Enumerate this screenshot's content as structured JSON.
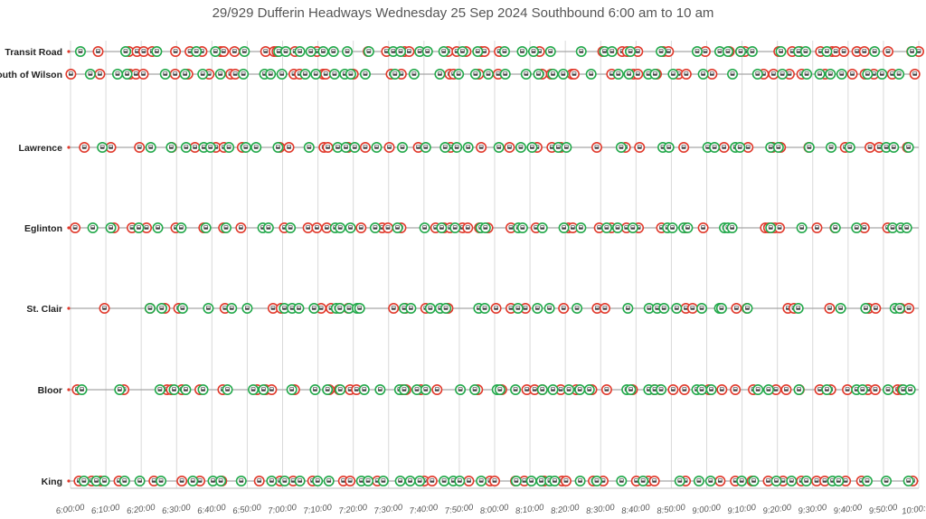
{
  "chart_data": {
    "type": "scatter",
    "title": "29/929 Dufferin Headways Wednesday 25 Sep 2024 Southbound 6:00 am to 10 am",
    "xlabel": "",
    "ylabel": "",
    "x_range": [
      "6:00:00",
      "10:00:00"
    ],
    "x_ticks": [
      "6:00:00",
      "6:10:00",
      "6:20:00",
      "6:30:00",
      "6:40:00",
      "6:50:00",
      "7:00:00",
      "7:10:00",
      "7:20:00",
      "7:30:00",
      "7:40:00",
      "7:50:00",
      "8:00:00",
      "8:10:00",
      "8:20:00",
      "8:30:00",
      "8:40:00",
      "8:50:00",
      "9:00:00",
      "9:10:00",
      "9:20:00",
      "9:30:00",
      "9:40:00",
      "9:50:00",
      "10:00:00"
    ],
    "grid": "vertical",
    "legend": "none",
    "series_colors": {
      "route_29": "#e0392b",
      "route_929": "#22a84a"
    },
    "stops": [
      {
        "name": "Transit Road",
        "red": [
          7.8,
          16.5,
          18.8,
          20.7,
          23.1,
          29.7,
          33.8,
          37.2,
          42.5,
          43.3,
          46.4,
          55.2,
          57.6,
          58.4,
          63.5,
          69.7,
          84.2,
          89.4,
          94.5,
          95.8,
          106.8,
          109.3,
          111.9,
          116.2,
          117.1,
          121.3,
          132.7,
          150.6,
          156.1,
          157.5,
          160.5,
          167.7,
          169.2,
          179.6,
          186.4,
          189.6,
          190.8,
          200.4,
          204.2,
          206.4,
          212.2,
          215.5,
          216.5,
          218.8,
          222.5,
          224.6,
          231.3,
          238.0,
          240.0
        ],
        "green": [
          2.8,
          15.6,
          24.4,
          35.6,
          41.0,
          49.2,
          58.9,
          60.9,
          64.9,
          68.0,
          71.5,
          74.4,
          78.3,
          84.4,
          91.3,
          93.4,
          98.8,
          101.0,
          105.6,
          110.9,
          115.2,
          122.8,
          127.8,
          131.0,
          135.8,
          144.5,
          151.1,
          153.2,
          158.4,
          167.1,
          177.3,
          183.7,
          186.0,
          189.6,
          192.9,
          201.0,
          206.0,
          208.0,
          214.0,
          227.5,
          238.1
        ]
      },
      {
        "name": "South of Wilson",
        "red": [
          0.1,
          8.3,
          16.8,
          18.5,
          20.6,
          29.6,
          33.2,
          39.2,
          45.3,
          46.6,
          63.2,
          64.8,
          71.5,
          72.2,
          80.0,
          90.7,
          93.6,
          107.3,
          108.4,
          115.5,
          121.0,
          133.4,
          136.0,
          141.9,
          142.5,
          153.1,
          159.3,
          160.5,
          165.8,
          172.0,
          174.2,
          181.5,
          196.1,
          198.9,
          203.4,
          206.9,
          213.5,
          221.2,
          224.8,
          227.3,
          232.5,
          238.9
        ],
        "green": [
          5.6,
          13.3,
          16.0,
          26.8,
          32.4,
          37.4,
          42.4,
          48.9,
          54.9,
          56.6,
          59.8,
          66.4,
          69.4,
          74.7,
          77.6,
          79.3,
          83.4,
          91.8,
          97.2,
          104.5,
          109.8,
          114.6,
          118.2,
          123.0,
          128.9,
          132.4,
          136.5,
          139.4,
          147.3,
          155.0,
          158.0,
          163.5,
          165.4,
          170.5,
          179.0,
          187.3,
          194.4,
          201.4,
          208.3,
          212.0,
          215.0,
          218.2,
          225.5,
          229.6,
          234.4
        ]
      },
      {
        "name": "Lawrence",
        "red": [
          3.9,
          11.4,
          19.5,
          28.6,
          35.2,
          41.1,
          43.4,
          48.6,
          59.2,
          61.8,
          71.7,
          72.8,
          78.5,
          83.4,
          90.2,
          98.4,
          107.5,
          116.2,
          124.2,
          132.0,
          136.2,
          138.7,
          148.9,
          157.0,
          161.0,
          173.5,
          184.9,
          191.7,
          198.6,
          200.9,
          208.9,
          219.2,
          226.2,
          228.8,
          236.8
        ],
        "green": [
          9.0,
          22.7,
          28.5,
          32.7,
          37.7,
          39.6,
          44.8,
          49.6,
          52.5,
          58.7,
          67.5,
          75.6,
          77.9,
          80.4,
          86.6,
          93.9,
          100.5,
          106.0,
          109.3,
          112.5,
          121.2,
          127.4,
          130.6,
          138.0,
          140.3,
          155.8,
          167.6,
          169.3,
          180.3,
          182.2,
          188.1,
          189.4,
          198.1,
          200.3,
          209.0,
          215.2,
          220.5,
          230.8,
          232.9,
          237.1
        ]
      },
      {
        "name": "Eglinton",
        "red": [
          1.3,
          12.3,
          17.4,
          21.5,
          29.8,
          37.7,
          43.3,
          48.2,
          60.5,
          67.2,
          69.7,
          72.5,
          82.2,
          88.2,
          89.8,
          93.5,
          103.3,
          105.7,
          107.4,
          110.9,
          112.4,
          115.7,
          118.1,
          124.6,
          131.7,
          140.9,
          142.1,
          149.6,
          153.0,
          157.3,
          160.7,
          167.2,
          174.1,
          179.0,
          196.6,
          197.5,
          198.4,
          199.3,
          200.6,
          211.2,
          216.3,
          224.6,
          231.2
        ],
        "green": [
          6.3,
          11.4,
          19.3,
          24.7,
          31.3,
          38.3,
          44.0,
          54.4,
          56.0,
          62.2,
          74.9,
          76.3,
          79.2,
          86.2,
          92.5,
          100.2,
          105.0,
          108.8,
          116.1,
          117.4,
          126.7,
          127.9,
          133.5,
          139.6,
          144.4,
          151.7,
          154.8,
          159.1,
          168.9,
          170.3,
          173.5,
          174.6,
          185.0,
          186.0,
          187.2,
          198.1,
          206.9,
          216.4,
          222.4,
          232.6,
          234.9,
          236.6
        ]
      },
      {
        "name": "St. Clair",
        "red": [
          9.6,
          22.5,
          26.7,
          30.6,
          43.7,
          57.3,
          59.6,
          70.9,
          73.7,
          76.2,
          78.6,
          91.4,
          94.7,
          100.5,
          106.8,
          120.4,
          124.6,
          128.7,
          139.5,
          149.0,
          151.2,
          174.1,
          176.0,
          188.4,
          191.4,
          203.0,
          204.7,
          214.8,
          225.8,
          227.8,
          234.9,
          237.2
        ],
        "green": [
          22.5,
          25.8,
          31.7,
          39.0,
          45.6,
          50.0,
          60.5,
          62.7,
          64.6,
          68.9,
          75.2,
          76.2,
          78.8,
          81.1,
          81.8,
          94.4,
          96.3,
          101.8,
          104.6,
          106.2,
          115.5,
          117.2,
          126.6,
          132.1,
          135.5,
          143.3,
          157.7,
          163.7,
          166.0,
          167.9,
          171.5,
          178.6,
          183.6,
          184.2,
          191.5,
          205.9,
          217.9,
          225.0,
          233.3,
          234.6
        ]
      },
      {
        "name": "Bloor",
        "red": [
          1.9,
          15.1,
          27.3,
          28.5,
          31.5,
          36.6,
          43.1,
          52.8,
          55.2,
          56.9,
          63.4,
          73.2,
          76.0,
          79.1,
          80.9,
          93.9,
          94.9,
          99.1,
          103.7,
          115.2,
          122.0,
          129.1,
          131.3,
          133.5,
          138.7,
          143.1,
          147.5,
          151.7,
          159.0,
          165.2,
          166.9,
          170.5,
          173.7,
          180.6,
          184.3,
          188.1,
          193.2,
          199.6,
          202.5,
          206.2,
          212.0,
          215.1,
          219.8,
          225.6,
          227.7,
          234.0,
          235.2
        ],
        "green": [
          3.2,
          13.9,
          25.3,
          29.3,
          32.6,
          37.5,
          44.4,
          51.7,
          54.6,
          62.6,
          69.2,
          72.7,
          76.3,
          83.1,
          87.6,
          93.1,
          94.4,
          98.0,
          100.5,
          110.3,
          114.4,
          120.7,
          121.5,
          125.9,
          133.5,
          136.5,
          141.0,
          144.1,
          146.8,
          157.4,
          158.5,
          163.6,
          165.3,
          167.1,
          177.2,
          178.6,
          181.3,
          194.5,
          197.5,
          206.1,
          214.0,
          222.4,
          224.1,
          231.3,
          235.6,
          237.6
        ]
      },
      {
        "name": "King",
        "red": [
          2.4,
          6.0,
          8.5,
          13.7,
          23.6,
          31.5,
          36.6,
          42.8,
          53.4,
          59.3,
          63.0,
          68.5,
          77.2,
          79.1,
          86.8,
          100.1,
          102.3,
          112.7,
          118.7,
          120.0,
          125.9,
          128.4,
          134.0,
          139.1,
          140.2,
          147.9,
          150.7,
          160.1,
          163.5,
          165.2,
          174.0,
          183.8,
          188.1,
          192.8,
          197.4,
          201.6,
          206.8,
          211.1,
          213.4,
          219.3,
          223.8,
          238.3
        ],
        "green": [
          3.8,
          7.3,
          9.6,
          15.3,
          19.6,
          25.6,
          34.6,
          40.3,
          42.5,
          48.3,
          56.9,
          60.6,
          64.9,
          69.9,
          73.1,
          82.3,
          84.2,
          88.5,
          93.3,
          96.1,
          98.8,
          105.7,
          108.3,
          110.1,
          116.2,
          126.1,
          130.4,
          133.2,
          135.6,
          137.0,
          144.2,
          148.9,
          155.9,
          162.0,
          172.4,
          177.8,
          181.1,
          189.9,
          193.3,
          199.7,
          204.0,
          208.2,
          215.6,
          217.3,
          225.4,
          230.8,
          237.1
        ]
      }
    ]
  }
}
